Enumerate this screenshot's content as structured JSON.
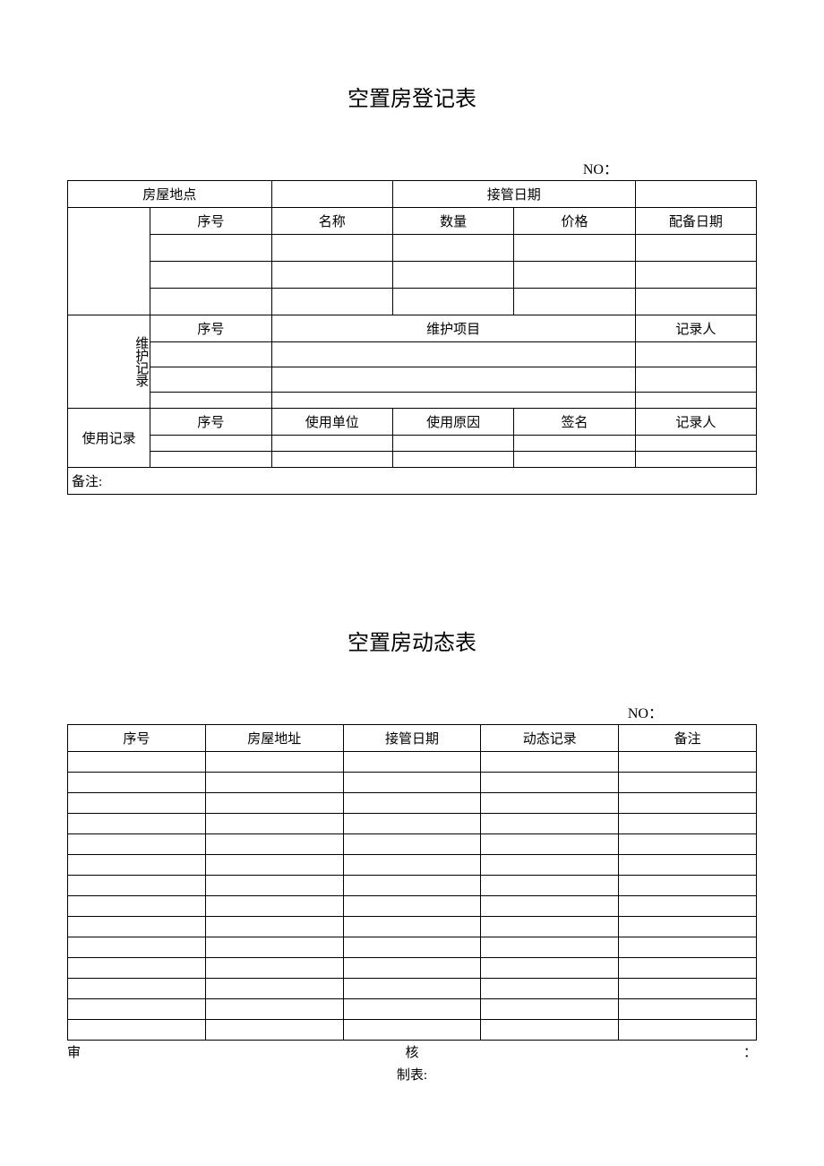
{
  "form1": {
    "title": "空置房登记表",
    "no_label": "NO：",
    "row1": {
      "location_label": "房屋地点",
      "takeover_label": "接管日期"
    },
    "equip_header": {
      "seq": "序号",
      "name": "名称",
      "qty": "数量",
      "price": "价格",
      "equip_date": "配备日期"
    },
    "maint": {
      "section_label": "维护记录",
      "seq": "序号",
      "project": "维护项目",
      "recorder": "记录人"
    },
    "use": {
      "section_label": "使用记录",
      "seq": "序号",
      "unit": "使用单位",
      "reason": "使用原因",
      "sign": "签名",
      "recorder": "记录人"
    },
    "remarks_label": "备注:"
  },
  "form2": {
    "title": "空置房动态表",
    "no_label": "NO：",
    "header": {
      "seq": "序号",
      "addr": "房屋地址",
      "takeover": "接管日期",
      "record": "动态记录",
      "remarks": "备注"
    },
    "footer": {
      "audit_a": "审",
      "audit_b": "核",
      "colon": "：",
      "maker": "制表:"
    }
  },
  "style": {
    "border_color": "#000000",
    "background": "#ffffff",
    "text_color": "#000000",
    "title_fontsize": 24,
    "body_fontsize": 15
  }
}
